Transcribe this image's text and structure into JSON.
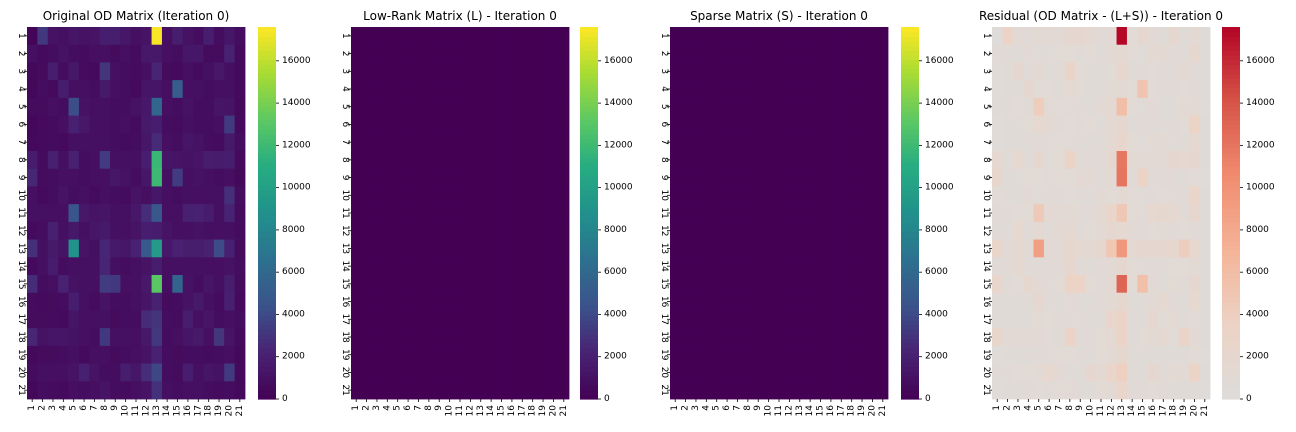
{
  "chart_data": [
    {
      "type": "heatmap",
      "title": "Original OD Matrix (Iteration 0)",
      "colormap": "viridis",
      "x_ticks": [
        "1",
        "2",
        "3",
        "4",
        "5",
        "6",
        "7",
        "8",
        "9",
        "10",
        "11",
        "12",
        "13",
        "14",
        "15",
        "16",
        "17",
        "18",
        "19",
        "20",
        "21"
      ],
      "y_ticks": [
        "1",
        "2",
        "3",
        "4",
        "5",
        "6",
        "7",
        "8",
        "9",
        "10",
        "11",
        "12",
        "13",
        "14",
        "15",
        "16",
        "17",
        "18",
        "19",
        "20",
        "21"
      ],
      "colorbar": {
        "vmin": 0,
        "vmax": 17600,
        "ticks": [
          0,
          2000,
          4000,
          6000,
          8000,
          10000,
          12000,
          14000,
          16000
        ]
      },
      "values": [
        [
          200,
          3200,
          1100,
          1000,
          1300,
          1100,
          1200,
          1900,
          1800,
          1400,
          1000,
          1200,
          17500,
          900,
          1800,
          1100,
          800,
          1900,
          800,
          1400,
          800
        ],
        [
          1000,
          600,
          800,
          1100,
          800,
          700,
          900,
          900,
          700,
          900,
          700,
          1500,
          1500,
          900,
          800,
          1400,
          1400,
          700,
          700,
          2100,
          600
        ],
        [
          500,
          700,
          1900,
          800,
          1500,
          700,
          600,
          3100,
          900,
          800,
          700,
          900,
          2300,
          700,
          600,
          900,
          700,
          1000,
          1500,
          1000,
          600
        ],
        [
          400,
          800,
          600,
          1900,
          900,
          900,
          800,
          1600,
          900,
          800,
          600,
          1300,
          1300,
          900,
          5200,
          900,
          1000,
          800,
          900,
          1000,
          600
        ],
        [
          700,
          700,
          900,
          800,
          4200,
          1100,
          900,
          1000,
          800,
          800,
          1100,
          1500,
          5900,
          900,
          800,
          1100,
          800,
          800,
          1300,
          1200,
          500
        ],
        [
          400,
          600,
          700,
          900,
          2000,
          1500,
          1000,
          900,
          800,
          900,
          700,
          1600,
          1900,
          800,
          700,
          1000,
          800,
          800,
          900,
          3300,
          600
        ],
        [
          500,
          600,
          700,
          600,
          1000,
          1000,
          900,
          1000,
          800,
          700,
          800,
          1400,
          2600,
          900,
          800,
          1300,
          1100,
          800,
          700,
          1600,
          800
        ],
        [
          1700,
          700,
          2000,
          1000,
          2100,
          800,
          900,
          3400,
          1000,
          1000,
          1000,
          1900,
          11900,
          1300,
          1200,
          1100,
          1300,
          1800,
          1700,
          1800,
          600
        ],
        [
          2400,
          700,
          800,
          900,
          900,
          800,
          900,
          900,
          1400,
          1100,
          800,
          1400,
          12000,
          1000,
          3400,
          1000,
          1100,
          1000,
          800,
          900,
          500
        ],
        [
          900,
          600,
          800,
          1200,
          800,
          1000,
          700,
          900,
          800,
          700,
          1200,
          900,
          1400,
          900,
          800,
          1000,
          900,
          1000,
          1000,
          2800,
          800
        ],
        [
          1000,
          1000,
          900,
          900,
          4600,
          1500,
          1200,
          1300,
          1000,
          1000,
          1500,
          2700,
          4800,
          900,
          1000,
          2000,
          2100,
          1700,
          1000,
          2200,
          700
        ],
        [
          600,
          800,
          2000,
          1000,
          1500,
          1000,
          1400,
          1600,
          1000,
          900,
          1200,
          1900,
          1700,
          1200,
          1000,
          900,
          1100,
          1000,
          900,
          1000,
          700
        ],
        [
          2800,
          1000,
          1600,
          1200,
          9000,
          1200,
          1000,
          2400,
          1600,
          1400,
          2100,
          4900,
          9600,
          1500,
          2100,
          1800,
          1800,
          2100,
          4100,
          2000,
          700
        ],
        [
          600,
          1000,
          1700,
          800,
          1000,
          1000,
          1000,
          2300,
          1000,
          800,
          1000,
          1200,
          1800,
          900,
          1000,
          1000,
          1000,
          900,
          900,
          1100,
          800
        ],
        [
          2600,
          800,
          900,
          2100,
          1100,
          1000,
          900,
          3400,
          3200,
          900,
          1000,
          1500,
          13100,
          900,
          5700,
          1100,
          800,
          1300,
          1000,
          1800,
          700
        ],
        [
          700,
          600,
          700,
          800,
          1900,
          1000,
          700,
          1200,
          800,
          800,
          1000,
          1300,
          2100,
          700,
          800,
          1100,
          1600,
          1000,
          700,
          2000,
          600
        ],
        [
          700,
          700,
          700,
          600,
          1300,
          900,
          1000,
          1000,
          700,
          800,
          800,
          2600,
          3000,
          800,
          700,
          1800,
          900,
          1300,
          800,
          900,
          800
        ],
        [
          2400,
          1100,
          1300,
          1300,
          1100,
          900,
          800,
          3200,
          1000,
          1000,
          900,
          1500,
          3200,
          800,
          900,
          1300,
          1600,
          900,
          3100,
          1200,
          600
        ],
        [
          500,
          700,
          700,
          800,
          1000,
          600,
          900,
          900,
          700,
          800,
          900,
          1200,
          2100,
          800,
          700,
          800,
          800,
          700,
          800,
          900,
          500
        ],
        [
          700,
          1000,
          900,
          900,
          1200,
          2000,
          1200,
          800,
          800,
          1800,
          1400,
          2700,
          3900,
          800,
          700,
          1900,
          1000,
          1300,
          1100,
          3300,
          600
        ],
        [
          400,
          800,
          700,
          600,
          900,
          800,
          900,
          1200,
          800,
          700,
          900,
          1200,
          2900,
          1000,
          800,
          900,
          1000,
          800,
          700,
          800,
          500
        ]
      ]
    },
    {
      "type": "heatmap",
      "title": "Low-Rank Matrix (L) - Iteration 0",
      "colormap": "viridis",
      "x_ticks": [
        "1",
        "2",
        "3",
        "4",
        "5",
        "6",
        "7",
        "8",
        "9",
        "10",
        "11",
        "12",
        "13",
        "14",
        "15",
        "16",
        "17",
        "18",
        "19",
        "20",
        "21"
      ],
      "y_ticks": [
        "1",
        "2",
        "3",
        "4",
        "5",
        "6",
        "7",
        "8",
        "9",
        "10",
        "11",
        "12",
        "13",
        "14",
        "15",
        "16",
        "17",
        "18",
        "19",
        "20",
        "21"
      ],
      "colorbar": {
        "vmin": 0,
        "vmax": 17600,
        "ticks": [
          0,
          2000,
          4000,
          6000,
          8000,
          10000,
          12000,
          14000,
          16000
        ]
      },
      "uniform_value": 0
    },
    {
      "type": "heatmap",
      "title": "Sparse Matrix (S) - Iteration 0",
      "colormap": "viridis",
      "x_ticks": [
        "1",
        "2",
        "3",
        "4",
        "5",
        "6",
        "7",
        "8",
        "9",
        "10",
        "11",
        "12",
        "13",
        "14",
        "15",
        "16",
        "17",
        "18",
        "19",
        "20",
        "21"
      ],
      "y_ticks": [
        "1",
        "2",
        "3",
        "4",
        "5",
        "6",
        "7",
        "8",
        "9",
        "10",
        "11",
        "12",
        "13",
        "14",
        "15",
        "16",
        "17",
        "18",
        "19",
        "20",
        "21"
      ],
      "colorbar": {
        "vmin": 0,
        "vmax": 17600,
        "ticks": [
          0,
          2000,
          4000,
          6000,
          8000,
          10000,
          12000,
          14000,
          16000
        ]
      },
      "uniform_value": 0
    },
    {
      "type": "heatmap",
      "title": "Residual (OD Matrix - (L+S)) - Iteration 0",
      "colormap": "coolwarm (upper half)",
      "x_ticks": [
        "1",
        "2",
        "3",
        "4",
        "5",
        "6",
        "7",
        "8",
        "9",
        "10",
        "11",
        "12",
        "13",
        "14",
        "15",
        "16",
        "17",
        "18",
        "19",
        "20",
        "21"
      ],
      "y_ticks": [
        "1",
        "2",
        "3",
        "4",
        "5",
        "6",
        "7",
        "8",
        "9",
        "10",
        "11",
        "12",
        "13",
        "14",
        "15",
        "16",
        "17",
        "18",
        "19",
        "20",
        "21"
      ],
      "colorbar": {
        "vmin": 0,
        "vmax": 17600,
        "ticks": [
          0,
          2000,
          4000,
          6000,
          8000,
          10000,
          12000,
          14000,
          16000
        ]
      },
      "values_same_as": "Original OD Matrix (Iteration 0)"
    }
  ]
}
